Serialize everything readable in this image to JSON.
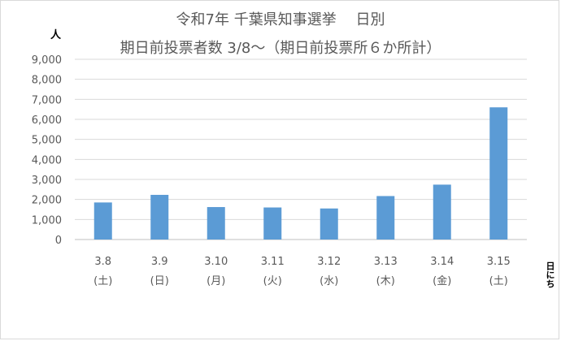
{
  "chart_data": {
    "type": "bar",
    "title_line1": "令和7年 千葉県知事選挙　 日別",
    "title_line2": "期日前投票者数 3/8～（期日前投票所６か所計）",
    "ylabel": "人",
    "xlabel": "日にち",
    "ylim": [
      0,
      9000
    ],
    "ytick_labels": [
      "0",
      "1,000",
      "2,000",
      "3,000",
      "4,000",
      "5,000",
      "6,000",
      "7,000",
      "8,000",
      "9,000"
    ],
    "grid": true,
    "bar_color": "#5b9bd5",
    "categories": [
      "3.8",
      "3.9",
      "3.10",
      "3.11",
      "3.12",
      "3.13",
      "3.14",
      "3.15"
    ],
    "weekdays": [
      "(土)",
      "(日)",
      "(月)",
      "(火)",
      "(水)",
      "(木)",
      "(金)",
      "(土)"
    ],
    "values": [
      1850,
      2230,
      1620,
      1600,
      1550,
      2170,
      2740,
      6600
    ]
  }
}
